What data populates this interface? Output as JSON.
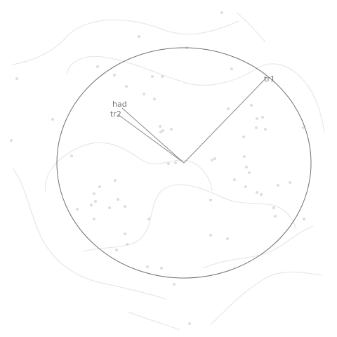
{
  "colors": {
    "background": "#ffffff",
    "boundary": "#6f6f6f",
    "ray": "#8a8a8a",
    "contour": "#e3e3e3",
    "point": "#dddddd",
    "label": "#777777"
  },
  "labels": {
    "had": "had",
    "tr1": "tr1",
    "tr2": "tr2"
  }
}
